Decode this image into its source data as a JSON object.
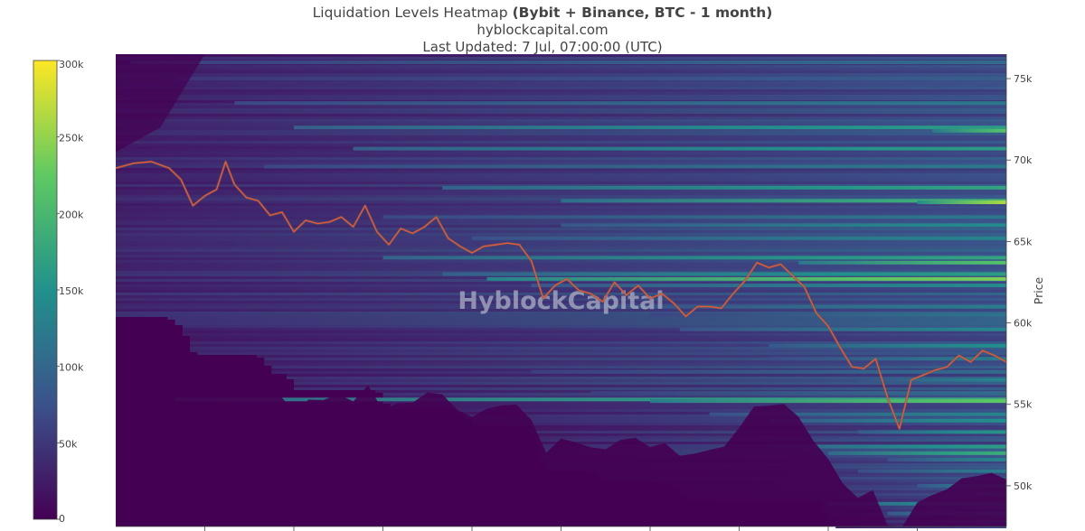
{
  "header": {
    "title_plain": "Liquidation Levels Heatmap ",
    "title_bold": "(Bybit + Binance, BTC - 1 month)",
    "site": "hyblockcapital.com",
    "updated": "Last Updated: 7 Jul, 07:00:00 (UTC)"
  },
  "watermark": "HyblockCapital",
  "colors": {
    "scale": [
      "#440154",
      "#3b528b",
      "#21918c",
      "#5ec962",
      "#fde725"
    ],
    "price_line": "#e05a3f",
    "price_line_dark": "#6b5a4a"
  },
  "chart_data": {
    "type": "heatmap",
    "title": "Liquidation Levels Heatmap (Bybit + Binance, BTC - 1 month)",
    "ylabel": "Price",
    "ylim": [
      47500,
      76500
    ],
    "yticks": [
      50000,
      55000,
      60000,
      65000,
      70000,
      75000
    ],
    "ytick_labels": [
      "50k",
      "55k",
      "60k",
      "65k",
      "70k",
      "75k"
    ],
    "x_range_days": [
      0,
      30
    ],
    "colorscale": {
      "min": 0,
      "max": 300000,
      "ticks": [
        0,
        50000,
        100000,
        150000,
        200000,
        250000,
        300000
      ],
      "tick_labels": [
        "0",
        "50k",
        "100k",
        "150k",
        "200k",
        "250k",
        "300k"
      ]
    },
    "bright_bands": [
      {
        "price": 76000,
        "start_day": 0.5,
        "intensity": 0.35
      },
      {
        "price": 75000,
        "start_day": 2,
        "intensity": 0.3
      },
      {
        "price": 73500,
        "start_day": 4,
        "intensity": 0.4
      },
      {
        "price": 72000,
        "start_day": 6,
        "intensity": 0.55
      },
      {
        "price": 71800,
        "start_day": 27.5,
        "intensity": 0.72
      },
      {
        "price": 70700,
        "start_day": 8,
        "intensity": 0.55
      },
      {
        "price": 69600,
        "start_day": 5,
        "intensity": 0.4
      },
      {
        "price": 68300,
        "start_day": 11,
        "intensity": 0.58
      },
      {
        "price": 67500,
        "start_day": 15,
        "intensity": 0.66
      },
      {
        "price": 67400,
        "start_day": 27,
        "intensity": 0.88
      },
      {
        "price": 66500,
        "start_day": 9,
        "intensity": 0.4
      },
      {
        "price": 66000,
        "start_day": 15,
        "intensity": 0.48
      },
      {
        "price": 65200,
        "start_day": 12,
        "intensity": 0.45
      },
      {
        "price": 64000,
        "start_day": 9,
        "intensity": 0.58
      },
      {
        "price": 63700,
        "start_day": 23,
        "intensity": 0.72
      },
      {
        "price": 63000,
        "start_day": 11,
        "intensity": 0.55
      },
      {
        "price": 62700,
        "start_day": 12.5,
        "intensity": 0.8
      },
      {
        "price": 62300,
        "start_day": 14,
        "intensity": 0.48
      },
      {
        "price": 61000,
        "start_day": 16,
        "intensity": 0.42
      },
      {
        "price": 60500,
        "start_day": 18,
        "intensity": 0.38
      },
      {
        "price": 59600,
        "start_day": 19,
        "intensity": 0.46
      },
      {
        "price": 58600,
        "start_day": 22,
        "intensity": 0.5
      },
      {
        "price": 57800,
        "start_day": 22,
        "intensity": 0.42
      },
      {
        "price": 57000,
        "start_day": 14,
        "intensity": 0.35
      },
      {
        "price": 56500,
        "start_day": 25,
        "intensity": 0.45
      },
      {
        "price": 55700,
        "start_day": 16,
        "intensity": 0.35
      },
      {
        "price": 55300,
        "start_day": 2,
        "intensity": 0.62
      },
      {
        "price": 55200,
        "start_day": 18,
        "intensity": 0.75
      },
      {
        "price": 54400,
        "start_day": 20,
        "intensity": 0.45
      },
      {
        "price": 54000,
        "start_day": 22,
        "intensity": 0.5
      },
      {
        "price": 53300,
        "start_day": 25,
        "intensity": 0.52
      },
      {
        "price": 52400,
        "start_day": 22,
        "intensity": 0.55
      },
      {
        "price": 52000,
        "start_day": 24,
        "intensity": 0.62
      },
      {
        "price": 51600,
        "start_day": 26,
        "intensity": 0.45
      },
      {
        "price": 50900,
        "start_day": 25,
        "intensity": 0.42
      },
      {
        "price": 50000,
        "start_day": 27,
        "intensity": 0.5
      },
      {
        "price": 49500,
        "start_day": 28,
        "intensity": 0.45
      },
      {
        "price": 48900,
        "start_day": 24,
        "intensity": 0.55
      },
      {
        "price": 48300,
        "start_day": 26,
        "intensity": 0.5
      },
      {
        "price": 47800,
        "start_day": 28,
        "intensity": 0.45
      }
    ],
    "price_series": {
      "name": "BTC price",
      "x_days": [
        0,
        0.6,
        1.2,
        1.8,
        2.2,
        2.6,
        3.0,
        3.4,
        3.7,
        4.0,
        4.4,
        4.8,
        5.2,
        5.6,
        6.0,
        6.4,
        6.8,
        7.2,
        7.6,
        8.0,
        8.4,
        8.8,
        9.2,
        9.6,
        10.0,
        10.4,
        10.8,
        11.2,
        11.6,
        12.0,
        12.4,
        12.8,
        13.2,
        13.6,
        14.0,
        14.4,
        14.8,
        15.2,
        15.6,
        16.0,
        16.4,
        16.8,
        17.2,
        17.6,
        18.0,
        18.4,
        18.8,
        19.2,
        19.6,
        20.0,
        20.4,
        20.8,
        21.2,
        21.6,
        22.0,
        22.4,
        22.8,
        23.2,
        23.6,
        24.0,
        24.4,
        24.8,
        25.2,
        25.6,
        26.0,
        26.4,
        26.8,
        27.2,
        27.6,
        28.0,
        28.4,
        28.8,
        29.2,
        29.6,
        30.0
      ],
      "y": [
        69500,
        69800,
        69900,
        69500,
        68800,
        67200,
        67800,
        68200,
        69900,
        68500,
        67700,
        67500,
        66600,
        66800,
        65600,
        66300,
        66100,
        66200,
        66500,
        65900,
        67200,
        65600,
        64800,
        65800,
        65500,
        65900,
        66500,
        65200,
        64700,
        64300,
        64700,
        64800,
        64900,
        64800,
        63800,
        61500,
        62300,
        62700,
        62000,
        61800,
        61300,
        62500,
        61700,
        62300,
        61500,
        61800,
        61200,
        60400,
        61000,
        61000,
        60900,
        61800,
        62600,
        63700,
        63400,
        63600,
        62900,
        62200,
        60600,
        59800,
        58500,
        57300,
        57200,
        57800,
        55400,
        53500,
        56500,
        56800,
        57100,
        57300,
        58000,
        57600,
        58300,
        58000,
        57600
      ]
    }
  }
}
